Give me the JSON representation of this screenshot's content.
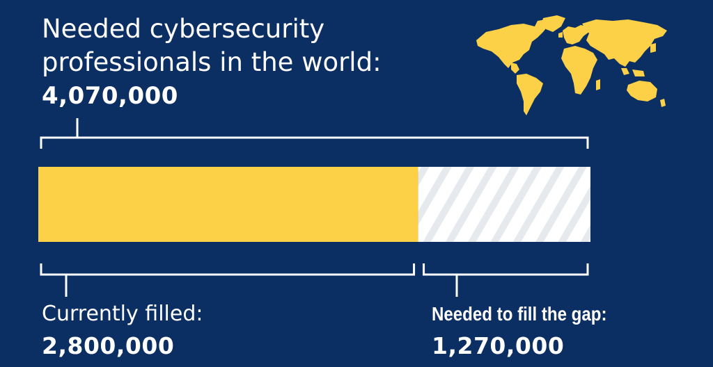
{
  "chart_data": {
    "type": "bar",
    "title": "Needed cybersecurity professionals in the world:",
    "total": 4070000,
    "total_label": "4,070,000",
    "segments": [
      {
        "name": "Currently filled:",
        "value": 2800000,
        "value_label": "2,800,000",
        "color": "#fdd147",
        "pattern": "solid"
      },
      {
        "name": "Needed to fill the gap:",
        "value": 1270000,
        "value_label": "1,270,000",
        "color": "#e9ecf0",
        "pattern": "striped"
      }
    ]
  },
  "map": {
    "icon": "world-map-icon",
    "color": "#fdd147"
  },
  "colors": {
    "background": "#0b2e63",
    "text": "#ffffff",
    "bracket": "#ffffff"
  }
}
